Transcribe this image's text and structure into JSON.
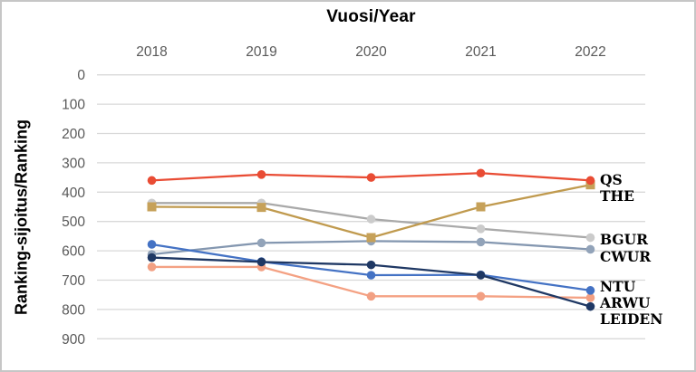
{
  "window": {
    "background": "#ffffff",
    "border_color": "#c6c6c6"
  },
  "chart_data": {
    "type": "line",
    "title": "Vuosi/Year",
    "y_axis_title": "Ranking-sijoitus/Ranking",
    "categories": [
      "2018",
      "2019",
      "2020",
      "2021",
      "2022"
    ],
    "y_ticks": [
      0,
      100,
      200,
      300,
      400,
      500,
      600,
      700,
      800,
      900
    ],
    "ylim": [
      0,
      900
    ],
    "y_axis_inverted": true,
    "grid": "horizontal",
    "grid_color": "#d9d9d9",
    "tick_label_color": "#595959",
    "series_label_color": "#000000",
    "legend_position": "right-of-last-point",
    "series": [
      {
        "name": "QS",
        "color": "#e94c34",
        "marker_color": "#e94c34",
        "marker": "circle",
        "values": [
          360,
          340,
          350,
          335,
          360
        ]
      },
      {
        "name": "THE",
        "color": "#c09a4e",
        "marker_color": "#c6a159",
        "marker": "square",
        "values": [
          450,
          452,
          555,
          450,
          375
        ]
      },
      {
        "name": "BGUR",
        "color": "#a9a9a9",
        "marker_color": "#cbcbcb",
        "marker": "circle",
        "values": [
          437,
          437,
          492,
          525,
          555
        ]
      },
      {
        "name": "CWUR",
        "color": "#8497b0",
        "marker_color": "#92a3b9",
        "marker": "circle",
        "values": [
          612,
          573,
          567,
          570,
          595
        ]
      },
      {
        "name": "NTU",
        "color": "#4472c4",
        "marker_color": "#4472c4",
        "marker": "circle",
        "values": [
          578,
          637,
          683,
          682,
          735
        ]
      },
      {
        "name": "ARWU",
        "color": "#f4a183",
        "marker_color": "#f2a083",
        "marker": "circle",
        "values": [
          655,
          655,
          755,
          755,
          760
        ]
      },
      {
        "name": "LEIDEN",
        "color": "#1f3864",
        "marker_color": "#1f3864",
        "marker": "circle",
        "values": [
          623,
          638,
          648,
          683,
          790
        ]
      }
    ]
  }
}
